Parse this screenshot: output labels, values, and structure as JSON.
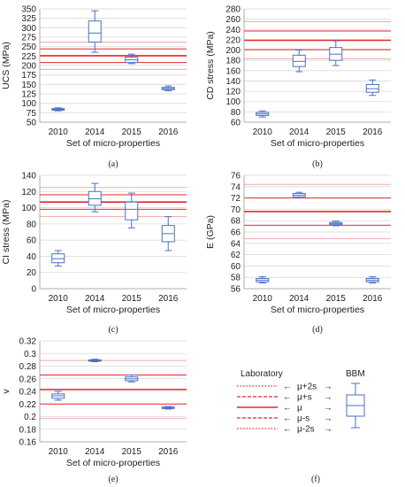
{
  "figure": {
    "legend": {
      "laboratory_label": "Laboratory",
      "bbm_label": "BBM",
      "items": [
        "μ+2s",
        "μ+s",
        "μ",
        "μ-s",
        "μ-2s"
      ],
      "arrow": "⟵  →"
    },
    "colors": {
      "box": "#4a72c4",
      "lab_line": "#e8262b",
      "lab_line_2s": "#f2a9a9",
      "grid": "#d9d9d9"
    }
  },
  "chart_data": [
    {
      "id": "a",
      "caption": "(a)",
      "type": "box",
      "categories": [
        "2010",
        "2014",
        "2015",
        "2016"
      ],
      "xlabel": "Set of micro-properties",
      "ylabel": "UCS (MPa)",
      "ylim": [
        50,
        350
      ],
      "yticks": [
        50,
        75,
        100,
        125,
        150,
        175,
        200,
        225,
        250,
        275,
        300,
        325,
        350
      ],
      "grid": true,
      "boxes": [
        {
          "min": 80,
          "q1": 82,
          "median": 84,
          "q3": 86,
          "max": 88
        },
        {
          "min": 235,
          "q1": 262,
          "median": 286,
          "q3": 318,
          "max": 345
        },
        {
          "min": 205,
          "q1": 208,
          "median": 215,
          "q3": 222,
          "max": 230
        },
        {
          "min": 133,
          "q1": 136,
          "median": 139,
          "q3": 142,
          "max": 146
        }
      ],
      "lab": {
        "mean": 226,
        "sd": 18
      }
    },
    {
      "id": "b",
      "caption": "(b)",
      "type": "box",
      "categories": [
        "2010",
        "2014",
        "2015",
        "2016"
      ],
      "xlabel": "Set of micro-properties",
      "ylabel": "CD stress (MPa)",
      "ylim": [
        60,
        280
      ],
      "yticks": [
        60,
        80,
        100,
        120,
        140,
        160,
        180,
        200,
        220,
        240,
        260,
        280
      ],
      "grid": true,
      "boxes": [
        {
          "min": 70,
          "q1": 73,
          "median": 76,
          "q3": 79,
          "max": 82
        },
        {
          "min": 158,
          "q1": 168,
          "median": 178,
          "q3": 190,
          "max": 200
        },
        {
          "min": 170,
          "q1": 180,
          "median": 192,
          "q3": 205,
          "max": 218
        },
        {
          "min": 112,
          "q1": 118,
          "median": 125,
          "q3": 133,
          "max": 142
        }
      ],
      "lab": {
        "mean": 219,
        "sd": 18
      }
    },
    {
      "id": "c",
      "caption": "(c)",
      "type": "box",
      "categories": [
        "2010",
        "2014",
        "2015",
        "2016"
      ],
      "xlabel": "Set of micro-properties",
      "ylabel": "CI stress (MPa)",
      "ylim": [
        0,
        140
      ],
      "yticks": [
        0,
        20,
        40,
        60,
        80,
        100,
        120,
        140
      ],
      "grid": true,
      "boxes": [
        {
          "min": 28,
          "q1": 32,
          "median": 37,
          "q3": 43,
          "max": 47
        },
        {
          "min": 95,
          "q1": 103,
          "median": 111,
          "q3": 120,
          "max": 130
        },
        {
          "min": 75,
          "q1": 85,
          "median": 98,
          "q3": 107,
          "max": 118
        },
        {
          "min": 47,
          "q1": 58,
          "median": 68,
          "q3": 78,
          "max": 89
        }
      ],
      "lab": {
        "mean": 107,
        "sd": 9
      }
    },
    {
      "id": "d",
      "caption": "(d)",
      "type": "box",
      "categories": [
        "2010",
        "2014",
        "2015",
        "2016"
      ],
      "xlabel": "Set of micro-properties",
      "ylabel": "E (GPa)",
      "ylim": [
        56,
        76
      ],
      "yticks": [
        56,
        58,
        60,
        62,
        64,
        66,
        68,
        70,
        72,
        74,
        76
      ],
      "grid": true,
      "boxes": [
        {
          "min": 57.0,
          "q1": 57.2,
          "median": 57.5,
          "q3": 57.8,
          "max": 58.1
        },
        {
          "min": 72.0,
          "q1": 72.2,
          "median": 72.5,
          "q3": 72.8,
          "max": 73.0
        },
        {
          "min": 67.1,
          "q1": 67.3,
          "median": 67.5,
          "q3": 67.7,
          "max": 67.9
        },
        {
          "min": 57.0,
          "q1": 57.2,
          "median": 57.5,
          "q3": 57.8,
          "max": 58.1
        }
      ],
      "lab": {
        "mean": 69.6,
        "sd": 2.4
      }
    },
    {
      "id": "e",
      "caption": "(e)",
      "type": "box",
      "categories": [
        "2010",
        "2014",
        "2015",
        "2016"
      ],
      "xlabel": "Set of micro-properties",
      "ylabel": "v",
      "ylim": [
        0.16,
        0.32
      ],
      "yticks": [
        0.16,
        0.18,
        0.2,
        0.22,
        0.24,
        0.26,
        0.28,
        0.3,
        0.32
      ],
      "grid": true,
      "boxes": [
        {
          "min": 0.226,
          "q1": 0.229,
          "median": 0.233,
          "q3": 0.236,
          "max": 0.24
        },
        {
          "min": 0.287,
          "q1": 0.288,
          "median": 0.289,
          "q3": 0.29,
          "max": 0.291
        },
        {
          "min": 0.255,
          "q1": 0.257,
          "median": 0.26,
          "q3": 0.263,
          "max": 0.266
        },
        {
          "min": 0.212,
          "q1": 0.213,
          "median": 0.214,
          "q3": 0.215,
          "max": 0.216
        }
      ],
      "lab": {
        "mean": 0.243,
        "sd": 0.023
      }
    }
  ],
  "legend_caption": "(f)"
}
